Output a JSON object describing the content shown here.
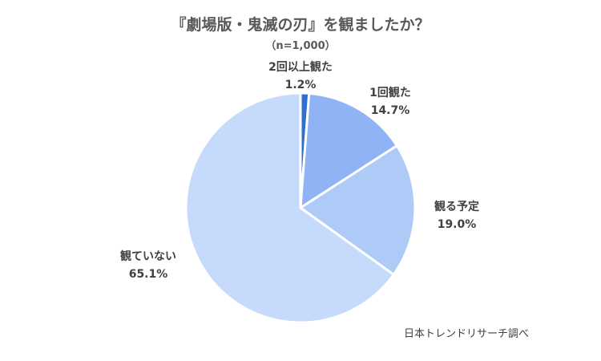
{
  "chart_data": {
    "type": "pie",
    "title": "『劇場版・鬼滅の刃』を観ましたか？",
    "subtitle": "（n=1,000）",
    "unit": "%",
    "slices": [
      {
        "label": "2回以上観た",
        "value": 1.2,
        "display": "1.2%",
        "color": "#2f6fd0"
      },
      {
        "label": "1回観た",
        "value": 14.7,
        "display": "14.7%",
        "color": "#8fb3f5"
      },
      {
        "label": "観る予定",
        "value": 19.0,
        "display": "19.0%",
        "color": "#aecbf7"
      },
      {
        "label": "観ていない",
        "value": 65.1,
        "display": "65.1%",
        "color": "#c6dbfb"
      }
    ]
  },
  "source": "日本トレンドリサーチ調べ"
}
